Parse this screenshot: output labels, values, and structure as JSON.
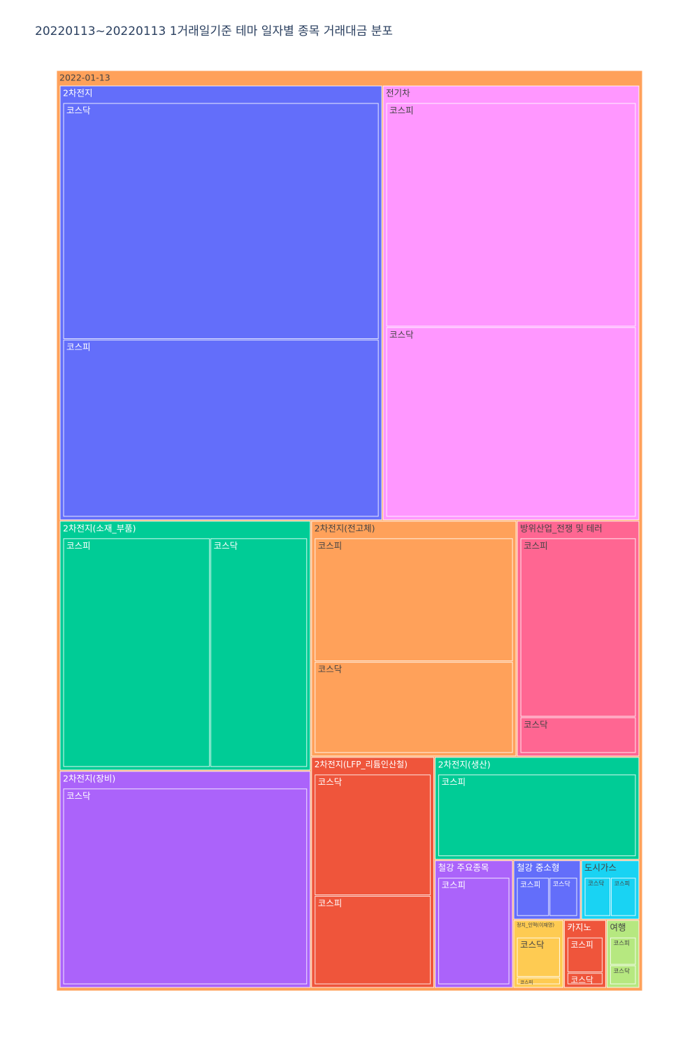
{
  "chart_data": {
    "type": "treemap",
    "title": "20220113~20220113 1거래일기준 테마 일자별 종목 거래대금 분포",
    "root": {
      "label": "2022-01-13",
      "color": "#FFA15A",
      "children": [
        {
          "label": "2차전지",
          "color": "#636EFA",
          "children": [
            {
              "label": "코스닥",
              "value": 1626
            },
            {
              "label": "코스피",
              "value": 1221
            }
          ]
        },
        {
          "label": "전기차",
          "color": "#FF97FF",
          "children": [
            {
              "label": "코스피",
              "value": 1226
            },
            {
              "label": "코스닥",
              "value": 1040
            }
          ]
        },
        {
          "label": "2차전지(소재_부품)",
          "color": "#00CC96",
          "children": [
            {
              "label": "코스피",
              "value": 767
            },
            {
              "label": "코스닥",
              "value": 507
            }
          ]
        },
        {
          "label": "2차전지(장비)",
          "color": "#AB63FA",
          "children": [
            {
              "label": "코스닥",
              "value": 1107
            }
          ]
        },
        {
          "label": "2차전지(전고체)",
          "color": "#FFA15A",
          "children": [
            {
              "label": "코스피",
              "value": 565
            },
            {
              "label": "코스닥",
              "value": 419
            }
          ]
        },
        {
          "label": "방위산업_전쟁 및 테러",
          "color": "#FF6692",
          "children": [
            {
              "label": "코스피",
              "value": 489
            },
            {
              "label": "코스닥",
              "value": 99
            }
          ]
        },
        {
          "label": "2차전지(LFP_리튬인산철)",
          "color": "#EF553B",
          "children": [
            {
              "label": "코스닥",
              "value": 334
            },
            {
              "label": "코스피",
              "value": 245
            }
          ]
        },
        {
          "label": "2차전지(생산)",
          "color": "#00CC96",
          "children": [
            {
              "label": "코스피",
              "value": 429
            }
          ]
        },
        {
          "label": "철강 주요종목",
          "color": "#AB63FA",
          "children": [
            {
              "label": "코스피",
              "value": 204
            }
          ]
        },
        {
          "label": "철강 중소형",
          "color": "#636EFA",
          "children": [
            {
              "label": "코스피",
              "value": 44
            },
            {
              "label": "코스닥",
              "value": 38
            }
          ]
        },
        {
          "label": "도시가스",
          "color": "#19D3F3",
          "children": [
            {
              "label": "코스닥",
              "value": 36
            },
            {
              "label": "코스피",
              "value": 35
            }
          ]
        },
        {
          "label": "정치_인맥(이재명)",
          "color": "#FECB52",
          "children": [
            {
              "label": "코스닥",
              "value": 59
            },
            {
              "label": "코스피",
              "value": 11
            }
          ]
        },
        {
          "label": "카지노",
          "color": "#EF553B",
          "children": [
            {
              "label": "코스피",
              "value": 44
            },
            {
              "label": "코스닥",
              "value": 15
            }
          ]
        },
        {
          "label": "여행",
          "color": "#B6E880",
          "children": [
            {
              "label": "코스피",
              "value": 27
            },
            {
              "label": "코스닥",
              "value": 19
            }
          ]
        }
      ]
    }
  }
}
